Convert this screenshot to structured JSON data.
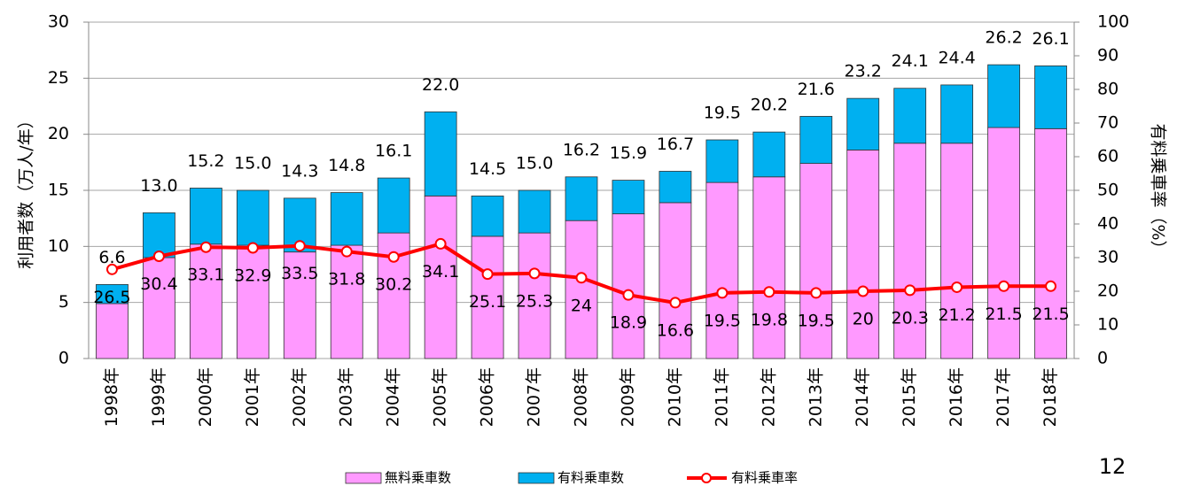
{
  "chart_data": {
    "type": "bar_line",
    "categories": [
      "1998年",
      "1999年",
      "2000年",
      "2001年",
      "2002年",
      "2003年",
      "2004年",
      "2005年",
      "2006年",
      "2007年",
      "2008年",
      "2009年",
      "2010年",
      "2011年",
      "2012年",
      "2013年",
      "2014年",
      "2015年",
      "2016年",
      "2017年",
      "2018年"
    ],
    "series": [
      {
        "name": "無料乗車数",
        "type": "bar",
        "color": "#ff99ff",
        "values": [
          4.9,
          9.0,
          10.2,
          10.1,
          9.5,
          10.1,
          11.2,
          14.5,
          10.9,
          11.2,
          12.3,
          12.9,
          13.9,
          15.7,
          16.2,
          17.4,
          18.6,
          19.2,
          19.2,
          20.6,
          20.5
        ]
      },
      {
        "name": "有料乗車数",
        "type": "bar",
        "color": "#00b0f0",
        "values": [
          1.7,
          4.0,
          5.0,
          4.9,
          4.8,
          4.7,
          4.9,
          7.5,
          3.6,
          3.8,
          3.9,
          3.0,
          2.8,
          3.8,
          4.0,
          4.2,
          4.6,
          4.9,
          5.2,
          5.6,
          5.6
        ]
      },
      {
        "name": "有料乗車率",
        "type": "line",
        "axis": "y2",
        "color": "#ff0000",
        "values": [
          26.5,
          30.4,
          33.1,
          32.9,
          33.5,
          31.8,
          30.2,
          34.1,
          25.1,
          25.3,
          24.0,
          18.9,
          16.6,
          19.5,
          19.8,
          19.5,
          20.0,
          20.3,
          21.2,
          21.5,
          21.5
        ]
      }
    ],
    "total_labels": [
      "6.6",
      "13.0",
      "15.2",
      "15.0",
      "14.3",
      "14.8",
      "16.1",
      "22.0",
      "14.5",
      "15.0",
      "16.2",
      "15.9",
      "16.7",
      "19.5",
      "20.2",
      "21.6",
      "23.2",
      "24.1",
      "24.4",
      "26.2",
      "26.1"
    ],
    "ylabel": "利用者数（万人/年）",
    "y2label": "有料乗車率（%）",
    "ylim": [
      0,
      30
    ],
    "yticks": [
      0,
      5,
      10,
      15,
      20,
      25,
      30
    ],
    "y2lim": [
      0,
      100
    ],
    "y2ticks": [
      0,
      10,
      20,
      30,
      40,
      50,
      60,
      70,
      80,
      90,
      100
    ],
    "grid": true,
    "legend": "bottom"
  },
  "page_number": "12"
}
